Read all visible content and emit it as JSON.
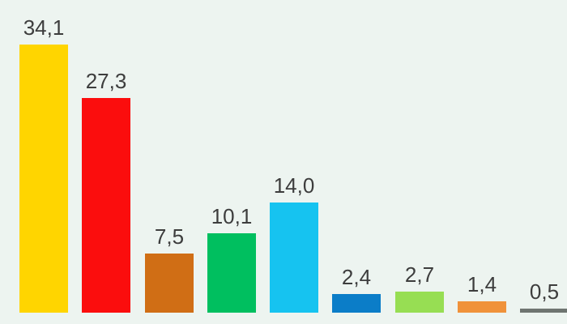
{
  "chart_data": {
    "type": "bar",
    "title": "",
    "xlabel": "",
    "ylabel": "",
    "categories": [
      "",
      "",
      "",
      "",
      "",
      "",
      "",
      "",
      ""
    ],
    "values": [
      34.1,
      27.3,
      7.5,
      10.1,
      14.0,
      2.4,
      2.7,
      1.4,
      0.5
    ],
    "value_labels": [
      "34,1",
      "27,3",
      "7,5",
      "10,1",
      "14,0",
      "2,4",
      "2,7",
      "1,4",
      "0,5"
    ],
    "bar_colors": [
      "#ffd500",
      "#fb0d0d",
      "#d06e15",
      "#00bf5f",
      "#16c3f0",
      "#0b7dc8",
      "#97de53",
      "#f0923a",
      "#6f7571"
    ],
    "ylim": [
      0,
      36
    ],
    "grid": false,
    "legend": false,
    "axis_labels_visible": false,
    "background_color": "#edf4f0",
    "label_color": "#3d3d3d"
  }
}
